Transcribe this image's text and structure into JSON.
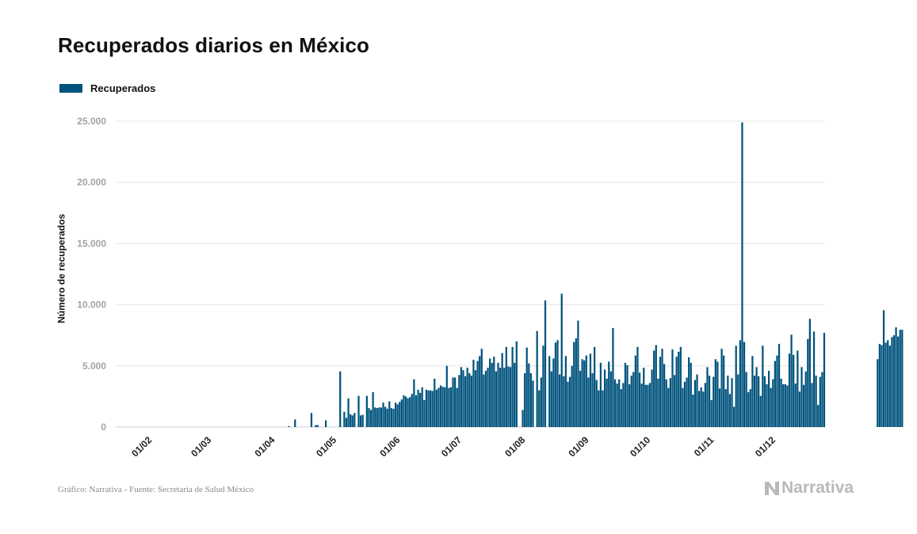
{
  "header": {
    "title": "Recuperados diarios en México"
  },
  "footer": {
    "source": "Gráfico: Narrativa - Fuente: Secretaria de Salud México"
  },
  "brand": {
    "name": "Narrativa",
    "icon": "narrativa-logo-icon"
  },
  "colors": {
    "bar": "#00537d",
    "grid": "#e6e6e6",
    "brand": "#b9b9b9"
  },
  "chart_data": {
    "type": "bar",
    "legend": {
      "label": "Recuperados",
      "placement": "top-left"
    },
    "ylabel": "Número de recuperados",
    "ylim": [
      0,
      25000
    ],
    "y_ticks": [
      "0",
      "5.000",
      "10.000",
      "15.000",
      "20.000",
      "25.000"
    ],
    "y_tick_values": [
      0,
      5000,
      10000,
      15000,
      20000,
      25000
    ],
    "x_tick_labels": [
      "01/02",
      "01/03",
      "01/04",
      "01/05",
      "01/06",
      "01/07",
      "01/08",
      "01/09",
      "01/10",
      "01/11",
      "01/12"
    ],
    "x_tick_days": [
      0,
      29,
      60,
      90,
      121,
      151,
      182,
      213,
      243,
      274,
      304
    ],
    "grid": true,
    "series": [
      {
        "name": "Recuperados",
        "start_day": -14,
        "values": [
          0,
          0,
          0,
          0,
          0,
          0,
          0,
          0,
          0,
          0,
          0,
          0,
          0,
          0,
          0,
          0,
          0,
          0,
          0,
          0,
          0,
          0,
          0,
          0,
          0,
          0,
          0,
          0,
          0,
          0,
          0,
          0,
          0,
          0,
          0,
          0,
          0,
          0,
          0,
          0,
          0,
          0,
          0,
          0,
          0,
          0,
          0,
          0,
          0,
          0,
          0,
          0,
          0,
          0,
          0,
          0,
          0,
          0,
          0,
          0,
          0,
          0,
          0,
          0,
          0,
          0,
          0,
          0,
          0,
          0,
          0,
          0,
          0,
          0,
          0,
          0,
          0,
          0,
          0,
          0,
          0,
          0,
          0,
          0,
          80,
          0,
          0,
          620,
          0,
          0,
          0,
          0,
          0,
          0,
          0,
          1150,
          0,
          150,
          170,
          0,
          0,
          0,
          550,
          0,
          0,
          0,
          0,
          0,
          0,
          4550,
          0,
          1250,
          750,
          2350,
          1050,
          950,
          1150,
          0,
          2550,
          950,
          1000,
          0,
          2550,
          1550,
          1400,
          2850,
          1600,
          1550,
          1600,
          1600,
          2000,
          1650,
          1500,
          2100,
          1550,
          1500,
          2000,
          1850,
          2050,
          2250,
          2600,
          2500,
          2350,
          2450,
          2700,
          3900,
          2600,
          3050,
          2800,
          3250,
          2200,
          3050,
          3000,
          3000,
          2950,
          3950,
          3050,
          3200,
          3400,
          3300,
          3250,
          5000,
          3200,
          3250,
          4050,
          4050,
          3200,
          4250,
          4900,
          4650,
          4150,
          4850,
          4400,
          4200,
          5500,
          4650,
          5400,
          5800,
          6400,
          4300,
          4600,
          4850,
          5600,
          5250,
          5750,
          4550,
          5250,
          4850,
          6050,
          4850,
          6550,
          4950,
          4900,
          6550,
          5250,
          7000,
          0,
          0,
          1400,
          4400,
          6500,
          5200,
          4400,
          3800,
          0,
          7850,
          3000,
          4050,
          6650,
          10350,
          0,
          5800,
          4550,
          5600,
          6900,
          7100,
          4300,
          10900,
          4150,
          5800,
          3700,
          4100,
          5000,
          6950,
          7250,
          8700,
          4600,
          5550,
          5450,
          5850,
          4050,
          6000,
          4400,
          6550,
          3850,
          3000,
          5250,
          3000,
          4700,
          3950,
          5350,
          4550,
          8100,
          3900,
          3550,
          3900,
          3100,
          3600,
          5250,
          5050,
          3500,
          4200,
          4500,
          5850,
          6550,
          4450,
          3550,
          4850,
          3450,
          3450,
          3600,
          4700,
          6250,
          6700,
          3950,
          5750,
          6400,
          5150,
          3900,
          3200,
          4000,
          6350,
          4250,
          5750,
          6150,
          6550,
          3200,
          3700,
          4050,
          5700,
          5250,
          2650,
          3850,
          4300,
          2950,
          3250,
          2900,
          3600,
          4900,
          4200,
          2200,
          4100,
          5550,
          5350,
          3150,
          6400,
          5850,
          3100,
          4200,
          2700,
          4000,
          1650,
          6650,
          4300,
          7100,
          24900,
          6950,
          4500,
          2850,
          3100,
          5800,
          4200,
          4900,
          4150,
          2550,
          6650,
          4150,
          3500,
          4600,
          3200,
          3900,
          5400,
          5850,
          6800,
          3950,
          3500,
          3500,
          3400,
          6000,
          7550,
          5900,
          3550,
          6250,
          2900,
          4900,
          3450,
          4550,
          7200,
          8850,
          3600,
          7800,
          4200,
          1800,
          4100,
          4500,
          7700,
          0,
          0,
          0,
          0,
          0,
          0,
          0,
          0,
          0,
          0,
          0,
          0,
          0,
          0,
          0,
          0,
          0,
          0,
          0,
          0,
          0,
          0,
          0,
          0,
          0,
          5550,
          6800,
          6700,
          9550,
          6900,
          7100,
          6650,
          7350,
          7500,
          8150,
          7400,
          7950,
          7950
        ]
      }
    ]
  }
}
